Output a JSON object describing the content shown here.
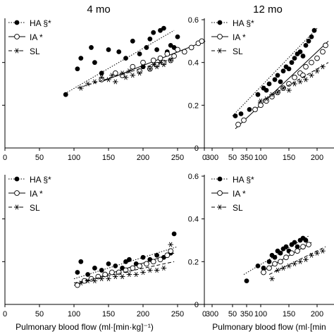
{
  "chart_data": [
    {
      "type": "scatter",
      "title": "4 mo",
      "xlabel": "",
      "ylabel": "",
      "xlim": [
        0,
        350
      ],
      "x_ticks": [
        "0",
        "50",
        "100",
        "150",
        "200",
        "250",
        "300",
        "350"
      ],
      "y_ticks": [],
      "ylim": [
        0,
        0.6
      ],
      "grid": false,
      "legend_position": "top-left",
      "series": [
        {
          "name": "HA §*",
          "marker": "filled-circle",
          "line": "dotted",
          "x": [
            88,
            105,
            110,
            125,
            130,
            140,
            150,
            165,
            175,
            185,
            195,
            200,
            205,
            210,
            215,
            220,
            225,
            230,
            235,
            240,
            245,
            250
          ],
          "y": [
            0.25,
            0.37,
            0.42,
            0.47,
            0.4,
            0.35,
            0.46,
            0.45,
            0.42,
            0.5,
            0.44,
            0.38,
            0.47,
            0.51,
            0.54,
            0.46,
            0.55,
            0.56,
            0.45,
            0.48,
            0.47,
            0.52
          ],
          "fit": [
            [
              90,
              0.26
            ],
            [
              245,
              0.55
            ]
          ]
        },
        {
          "name": "IA *",
          "marker": "open-circle",
          "line": "solid",
          "x": [
            140,
            160,
            170,
            185,
            195,
            200,
            210,
            215,
            220,
            225,
            230,
            235,
            240,
            245,
            250,
            260,
            270,
            280,
            285
          ],
          "y": [
            0.32,
            0.35,
            0.34,
            0.38,
            0.36,
            0.4,
            0.37,
            0.41,
            0.39,
            0.42,
            0.4,
            0.44,
            0.41,
            0.43,
            0.46,
            0.45,
            0.47,
            0.49,
            0.5
          ],
          "fit": [
            [
              140,
              0.31
            ],
            [
              290,
              0.5
            ]
          ]
        },
        {
          "name": "SL",
          "marker": "asterisk",
          "line": "dashed",
          "x": [
            110,
            120,
            130,
            140,
            150,
            155,
            160,
            170,
            175,
            180,
            185,
            195,
            200,
            210,
            215,
            220,
            225,
            230,
            240
          ],
          "y": [
            0.28,
            0.3,
            0.31,
            0.33,
            0.32,
            0.34,
            0.31,
            0.35,
            0.33,
            0.36,
            0.34,
            0.35,
            0.38,
            0.37,
            0.39,
            0.38,
            0.4,
            0.39,
            0.41
          ],
          "fit": [
            [
              105,
              0.28
            ],
            [
              245,
              0.42
            ]
          ]
        }
      ]
    },
    {
      "type": "scatter",
      "title": "12 mo",
      "xlabel": "",
      "ylabel": "",
      "xlim": [
        0,
        230
      ],
      "x_ticks": [
        "0",
        "50",
        "100",
        "150",
        "200"
      ],
      "y_ticks": [
        "0",
        "0.2",
        "0.4",
        "0.6"
      ],
      "ylim": [
        0,
        0.6
      ],
      "grid": false,
      "legend_position": "top-left",
      "series": [
        {
          "name": "HA §*",
          "marker": "filled-circle",
          "line": "dotted",
          "x": [
            55,
            65,
            80,
            95,
            105,
            110,
            115,
            125,
            130,
            135,
            140,
            145,
            150,
            155,
            160,
            165,
            170,
            175,
            180,
            185,
            190,
            195
          ],
          "y": [
            0.15,
            0.16,
            0.18,
            0.25,
            0.28,
            0.27,
            0.3,
            0.32,
            0.34,
            0.31,
            0.36,
            0.38,
            0.37,
            0.4,
            0.42,
            0.44,
            0.45,
            0.43,
            0.48,
            0.5,
            0.52,
            0.55
          ],
          "fit": [
            [
              50,
              0.15
            ],
            [
              200,
              0.56
            ]
          ]
        },
        {
          "name": "IA *",
          "marker": "open-circle",
          "line": "solid",
          "x": [
            60,
            70,
            90,
            100,
            110,
            120,
            130,
            140,
            150,
            160,
            170,
            175,
            180,
            190,
            200,
            210,
            215
          ],
          "y": [
            0.11,
            0.13,
            0.18,
            0.2,
            0.22,
            0.24,
            0.26,
            0.28,
            0.3,
            0.33,
            0.35,
            0.34,
            0.38,
            0.4,
            0.42,
            0.45,
            0.48
          ],
          "fit": [
            [
              55,
              0.09
            ],
            [
              220,
              0.5
            ]
          ]
        },
        {
          "name": "SL",
          "marker": "asterisk",
          "line": "dashed",
          "x": [
            100,
            110,
            120,
            130,
            140,
            150,
            160,
            170,
            180,
            190,
            200,
            210
          ],
          "y": [
            0.22,
            0.23,
            0.25,
            0.26,
            0.28,
            0.27,
            0.3,
            0.31,
            0.32,
            0.34,
            0.36,
            0.38
          ],
          "fit": [
            [
              95,
              0.21
            ],
            [
              220,
              0.4
            ]
          ]
        }
      ]
    },
    {
      "type": "scatter",
      "title": "",
      "xlabel": "Pulmonary blood flow (ml·[min·kg]⁻¹)",
      "ylabel": "",
      "xlim": [
        0,
        350
      ],
      "x_ticks": [
        "0",
        "50",
        "100",
        "150",
        "200",
        "250",
        "300",
        "350"
      ],
      "y_ticks": [],
      "ylim": [
        0,
        0.6
      ],
      "grid": false,
      "legend_position": "top-left",
      "series": [
        {
          "name": "HA §*",
          "marker": "filled-circle",
          "line": "dotted",
          "x": [
            105,
            110,
            120,
            130,
            140,
            150,
            160,
            170,
            175,
            180,
            190,
            200,
            210,
            220,
            230,
            240,
            245
          ],
          "y": [
            0.15,
            0.2,
            0.14,
            0.17,
            0.16,
            0.19,
            0.18,
            0.17,
            0.2,
            0.21,
            0.19,
            0.22,
            0.21,
            0.23,
            0.22,
            0.24,
            0.33
          ],
          "fit": [
            [
              100,
              0.12
            ],
            [
              250,
              0.27
            ]
          ]
        },
        {
          "name": "IA *",
          "marker": "open-circle",
          "line": "solid",
          "x": [
            105,
            115,
            125,
            135,
            145,
            155,
            165,
            175,
            185,
            195,
            205,
            215,
            225,
            235,
            240
          ],
          "y": [
            0.09,
            0.11,
            0.12,
            0.13,
            0.14,
            0.15,
            0.15,
            0.16,
            0.17,
            0.18,
            0.19,
            0.2,
            0.21,
            0.23,
            0.25
          ],
          "fit": [
            [
              100,
              0.09
            ],
            [
              245,
              0.24
            ]
          ]
        },
        {
          "name": "SL",
          "marker": "asterisk",
          "line": "dashed",
          "x": [
            110,
            120,
            130,
            140,
            150,
            160,
            170,
            180,
            190,
            200,
            210,
            220,
            230,
            240
          ],
          "y": [
            0.1,
            0.11,
            0.11,
            0.12,
            0.12,
            0.13,
            0.13,
            0.14,
            0.14,
            0.15,
            0.16,
            0.16,
            0.17,
            0.28
          ],
          "fit": [
            [
              100,
              0.1
            ],
            [
              245,
              0.2
            ]
          ]
        }
      ]
    },
    {
      "type": "scatter",
      "title": "",
      "xlabel": "Pulmonary blood flow (ml·[min",
      "ylabel": "",
      "xlim": [
        0,
        230
      ],
      "x_ticks": [
        "0",
        "50",
        "100",
        "150",
        "200"
      ],
      "y_ticks": [
        "0",
        "0.2",
        "0.4",
        "0.6"
      ],
      "ylim": [
        0,
        0.6
      ],
      "grid": false,
      "legend_position": "top-left",
      "series": [
        {
          "name": "HA §*",
          "marker": "filled-circle",
          "line": "dotted",
          "x": [
            75,
            95,
            105,
            115,
            120,
            125,
            130,
            135,
            140,
            145,
            150,
            155,
            160,
            165,
            170,
            175,
            180
          ],
          "y": [
            0.11,
            0.18,
            0.17,
            0.2,
            0.23,
            0.22,
            0.25,
            0.24,
            0.26,
            0.27,
            0.25,
            0.28,
            0.29,
            0.27,
            0.3,
            0.31,
            0.3
          ],
          "fit": [
            [
              70,
              0.14
            ],
            [
              185,
              0.32
            ]
          ]
        },
        {
          "name": "IA *",
          "marker": "open-circle",
          "line": "solid",
          "x": [
            105,
            115,
            125,
            135,
            145,
            155,
            165,
            175,
            185
          ],
          "y": [
            0.15,
            0.17,
            0.19,
            0.2,
            0.22,
            0.24,
            0.25,
            0.27,
            0.28
          ],
          "fit": [
            [
              100,
              0.15
            ],
            [
              190,
              0.29
            ]
          ]
        },
        {
          "name": "SL",
          "marker": "asterisk",
          "line": "dashed",
          "x": [
            120,
            130,
            140,
            150,
            160,
            170,
            180,
            190,
            200,
            210
          ],
          "y": [
            0.12,
            0.16,
            0.17,
            0.18,
            0.19,
            0.2,
            0.21,
            0.23,
            0.24,
            0.25
          ],
          "fit": [
            [
              115,
              0.14
            ],
            [
              215,
              0.27
            ]
          ]
        }
      ]
    }
  ]
}
